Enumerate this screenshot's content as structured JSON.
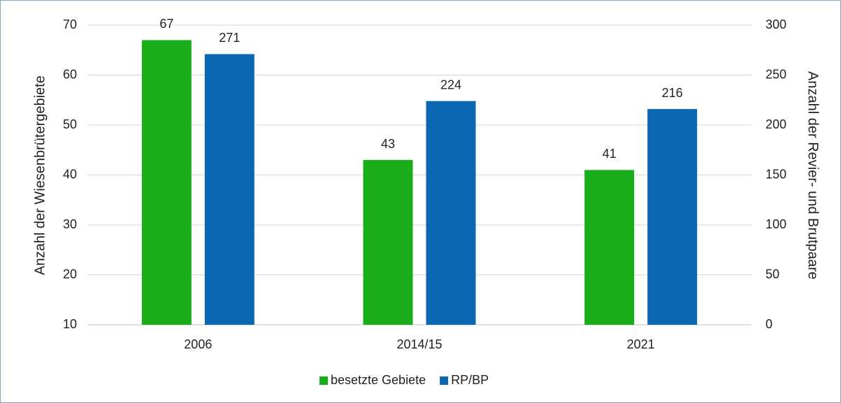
{
  "chart_data": {
    "type": "bar",
    "categories": [
      "2006",
      "2014/15",
      "2021"
    ],
    "series": [
      {
        "name": "besetzte Gebiete",
        "color": "#1aad1a",
        "values": [
          67,
          43,
          41
        ]
      },
      {
        "name": "RP/BP",
        "color": "#0b67b2",
        "values": [
          271,
          224,
          216
        ],
        "axis": "y2"
      }
    ],
    "ylabel": "Anzahl der Wiesenbrütergebiete",
    "y2label": "Anzahl der Revier- und Brutpaare",
    "ylim": [
      10,
      70
    ],
    "yticks": [
      10,
      20,
      30,
      40,
      50,
      60,
      70
    ],
    "y2lim": [
      0,
      300
    ],
    "y2ticks": [
      0,
      50,
      100,
      150,
      200,
      250,
      300
    ],
    "grid": true,
    "legend": "bottom"
  }
}
